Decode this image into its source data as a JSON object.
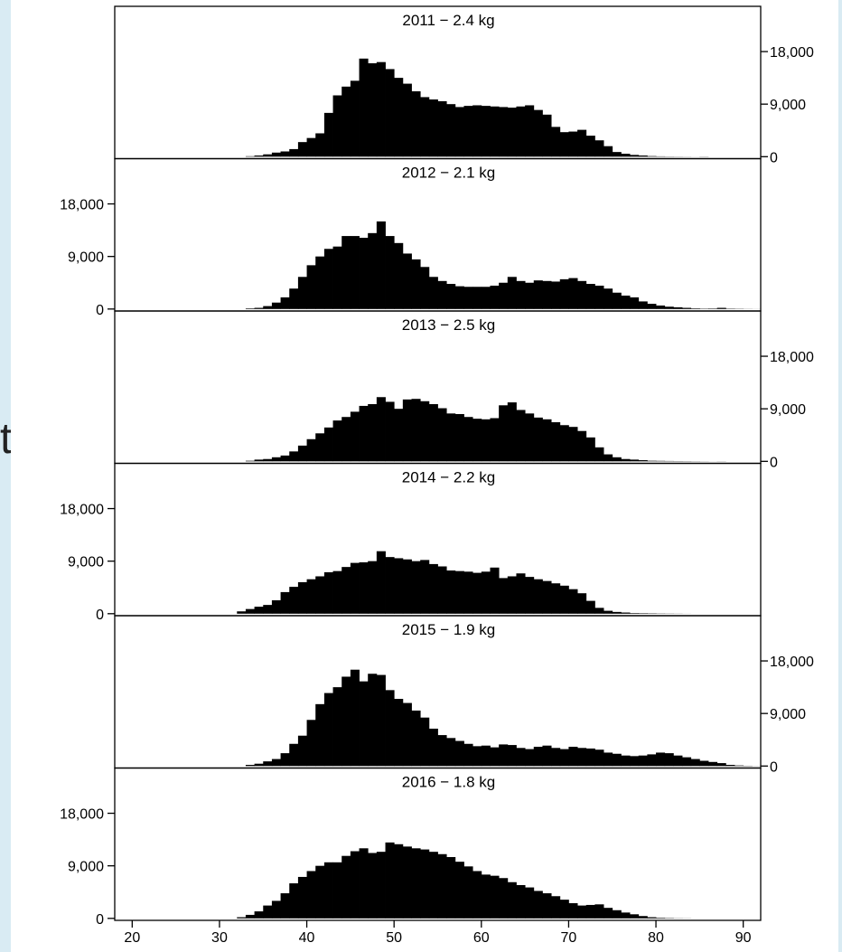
{
  "slide": {
    "partial_text": "t"
  },
  "chart_data": {
    "type": "bar",
    "xlabel": "",
    "ylabel": "",
    "x_ticks": [
      20,
      30,
      40,
      50,
      60,
      70,
      80,
      90
    ],
    "xlim": [
      18,
      92
    ],
    "bin_width": 1,
    "x_start": 20,
    "ylim": [
      0,
      24000
    ],
    "y_ticks": [
      0,
      9000,
      18000
    ],
    "y_tick_labels": [
      "0",
      "9,000",
      "18,000"
    ],
    "bar_color": "#000000",
    "panels": [
      {
        "title": "2011 − 2.4 kg",
        "axis_side": "right",
        "values": [
          0,
          0,
          0,
          0,
          0,
          0,
          0,
          0,
          0,
          0,
          0,
          0,
          0,
          80,
          200,
          400,
          700,
          900,
          1300,
          2500,
          3200,
          4000,
          7500,
          10500,
          12000,
          13000,
          16800,
          16000,
          16200,
          15000,
          13500,
          12500,
          11200,
          10200,
          9800,
          9500,
          9000,
          8500,
          8700,
          8800,
          8700,
          8600,
          8500,
          8400,
          8600,
          8800,
          8000,
          7200,
          5100,
          4200,
          4300,
          4600,
          3600,
          2800,
          1800,
          800,
          500,
          300,
          200,
          100,
          60,
          40,
          30,
          20,
          10,
          30,
          0,
          0,
          0,
          0,
          0,
          0,
          0
        ]
      },
      {
        "title": "2012 − 2.1 kg",
        "axis_side": "left",
        "values": [
          0,
          0,
          0,
          0,
          0,
          0,
          0,
          0,
          0,
          0,
          0,
          0,
          0,
          100,
          200,
          500,
          1100,
          2000,
          3500,
          5500,
          7500,
          9000,
          10300,
          10700,
          12500,
          12500,
          12200,
          13000,
          15000,
          12500,
          11300,
          9500,
          8500,
          7200,
          5500,
          4800,
          4300,
          3900,
          3800,
          3800,
          3800,
          4000,
          4500,
          5500,
          4800,
          4500,
          4900,
          4800,
          4700,
          5100,
          5300,
          4800,
          4300,
          4000,
          3500,
          2800,
          2300,
          2000,
          1300,
          900,
          600,
          400,
          300,
          200,
          100,
          60,
          80,
          200,
          60,
          40,
          20,
          10
        ]
      },
      {
        "title": "2013 − 2.5 kg",
        "axis_side": "right",
        "values": [
          0,
          0,
          0,
          0,
          0,
          0,
          0,
          0,
          0,
          0,
          0,
          0,
          0,
          100,
          300,
          400,
          700,
          1000,
          1700,
          2700,
          3800,
          4800,
          5800,
          7000,
          7600,
          8500,
          9500,
          9800,
          11000,
          10200,
          9000,
          10600,
          10700,
          10300,
          9800,
          9100,
          8200,
          8100,
          7600,
          7300,
          7200,
          7400,
          9600,
          10100,
          8800,
          8200,
          7500,
          7200,
          6700,
          6200,
          5900,
          5200,
          4100,
          2400,
          1200,
          700,
          400,
          300,
          200,
          100,
          80,
          60,
          50,
          40,
          30,
          20,
          10,
          20,
          0,
          0,
          0,
          0
        ]
      },
      {
        "title": "2014 − 2.2 kg",
        "axis_side": "left",
        "values": [
          0,
          0,
          0,
          0,
          0,
          0,
          0,
          0,
          0,
          0,
          0,
          0,
          400,
          800,
          1200,
          1500,
          2300,
          3700,
          4600,
          5400,
          5900,
          6400,
          7100,
          7300,
          8000,
          8700,
          8800,
          9000,
          10700,
          9700,
          9500,
          9300,
          9000,
          9200,
          8500,
          8100,
          7400,
          7300,
          7200,
          7000,
          7200,
          7900,
          6100,
          6400,
          6900,
          6300,
          5900,
          5600,
          5200,
          4800,
          4200,
          3500,
          2200,
          1000,
          500,
          300,
          200,
          100,
          80,
          60,
          40,
          30,
          20,
          10,
          0,
          0,
          0,
          0,
          0,
          0,
          0
        ]
      },
      {
        "title": "2015 − 1.9 kg",
        "axis_side": "right",
        "values": [
          0,
          0,
          0,
          0,
          0,
          0,
          0,
          0,
          0,
          0,
          0,
          0,
          0,
          200,
          400,
          800,
          1200,
          2200,
          3800,
          5200,
          7900,
          10600,
          12500,
          13500,
          15300,
          16500,
          14500,
          15800,
          15600,
          13000,
          11500,
          10800,
          9500,
          8300,
          6400,
          5300,
          4800,
          4300,
          3800,
          3400,
          3500,
          3200,
          3700,
          3600,
          3100,
          2900,
          3300,
          3500,
          3100,
          2900,
          3300,
          3100,
          3000,
          2800,
          2300,
          2100,
          1800,
          1700,
          1800,
          2000,
          2300,
          2200,
          1800,
          1500,
          1200,
          900,
          700,
          500,
          200,
          100,
          50,
          20,
          10
        ]
      },
      {
        "title": "2016 − 1.8 kg",
        "axis_side": "left",
        "values": [
          0,
          0,
          0,
          0,
          0,
          0,
          0,
          0,
          0,
          0,
          0,
          0,
          200,
          600,
          1200,
          2200,
          3000,
          4300,
          6000,
          7100,
          8100,
          9000,
          9600,
          9600,
          10700,
          11500,
          12000,
          11200,
          11400,
          13000,
          12700,
          12300,
          12000,
          11800,
          11400,
          11000,
          10500,
          9700,
          8900,
          8100,
          7500,
          7300,
          6900,
          6200,
          5700,
          5300,
          4700,
          4300,
          3800,
          3200,
          2600,
          2200,
          2300,
          2400,
          1800,
          1400,
          1000,
          700,
          400,
          200,
          100,
          60,
          30,
          20,
          0,
          0,
          0,
          0,
          0,
          0,
          0,
          0
        ]
      }
    ]
  }
}
